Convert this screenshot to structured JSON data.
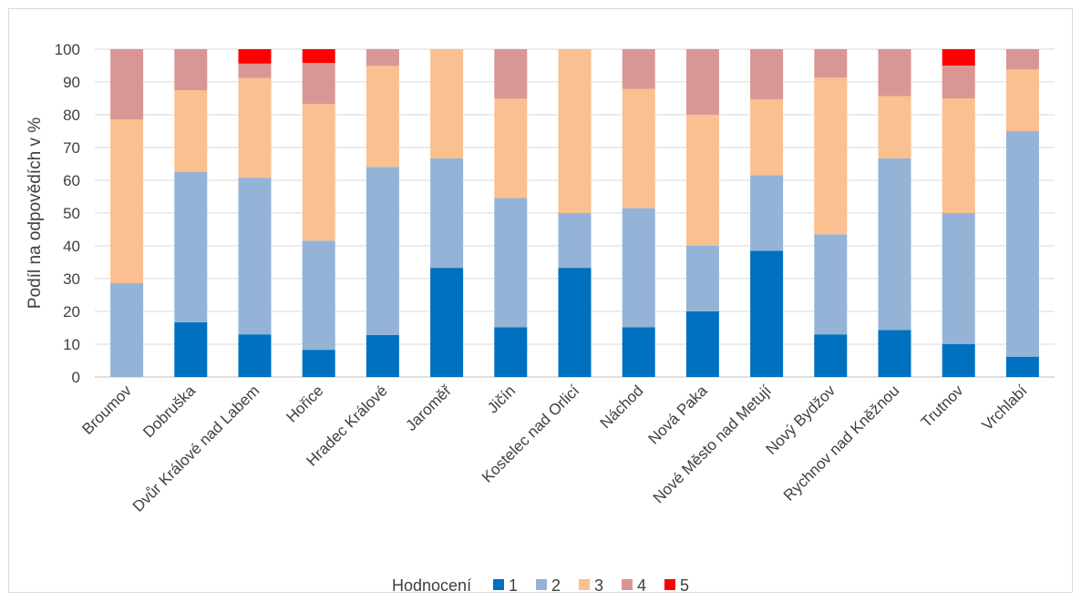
{
  "chart_data": {
    "type": "bar",
    "stacked": true,
    "ylabel": "Podíl na odpovědích v %",
    "ylim": [
      0,
      100
    ],
    "yticks": [
      0,
      10,
      20,
      30,
      40,
      50,
      60,
      70,
      80,
      90,
      100
    ],
    "grid": true,
    "legend_placement": "bottom",
    "legend_title": "Hodnocení",
    "categories": [
      "Broumov",
      "Dobruška",
      "Dvůr Králové nad Labem",
      "Hořice",
      "Hradec Králové",
      "Jaroměř",
      "Jičín",
      "Kostelec nad Orlicí",
      "Náchod",
      "Nová Paka",
      "Nové Město nad Metují",
      "Nový Bydžov",
      "Rychnov nad Kněžnou",
      "Trutnov",
      "Vrchlabí"
    ],
    "series": [
      {
        "name": "1",
        "color": "#0070C0",
        "values": [
          0,
          16.7,
          13,
          8.3,
          12.8,
          33.3,
          15.2,
          33.3,
          15.2,
          20,
          38.5,
          13,
          14.3,
          10,
          6.2
        ]
      },
      {
        "name": "2",
        "color": "#95B3D7",
        "values": [
          28.6,
          45.8,
          47.8,
          33.3,
          51.3,
          33.4,
          39.4,
          16.7,
          36.3,
          20,
          23.1,
          30.5,
          52.4,
          40,
          68.8
        ]
      },
      {
        "name": "3",
        "color": "#FAC090",
        "values": [
          50,
          25,
          30.4,
          41.7,
          30.8,
          33.3,
          30.3,
          50,
          36.4,
          40,
          23.1,
          47.8,
          19,
          35,
          18.8
        ]
      },
      {
        "name": "4",
        "color": "#DA9694",
        "values": [
          21.4,
          12.5,
          4.4,
          12.5,
          5.1,
          0,
          15.1,
          0,
          12.1,
          20,
          15.3,
          8.7,
          14.3,
          10,
          6.2
        ]
      },
      {
        "name": "5",
        "color": "#FF0000",
        "values": [
          0,
          0,
          4.4,
          4.2,
          0,
          0,
          0,
          0,
          0,
          0,
          0,
          0,
          0,
          5,
          0
        ]
      }
    ]
  }
}
